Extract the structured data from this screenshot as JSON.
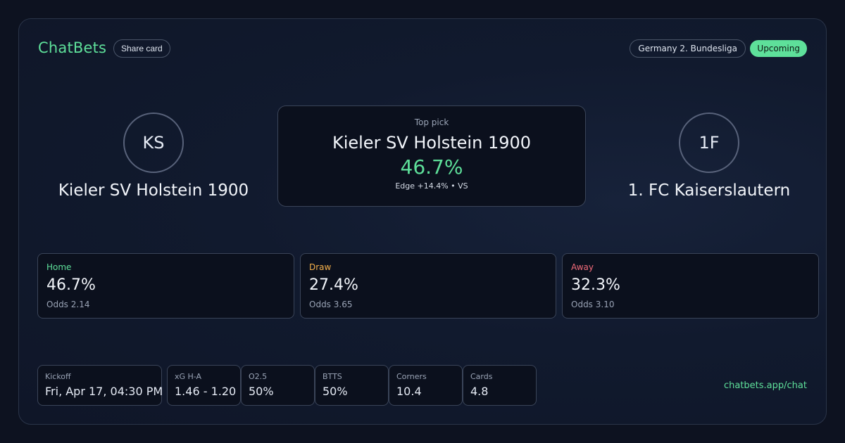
{
  "header": {
    "brand": "ChatBets",
    "share_label": "Share card",
    "league": "Germany 2. Bundesliga",
    "status": "Upcoming"
  },
  "home_team": {
    "initials": "KS",
    "name": "Kieler SV Holstein 1900"
  },
  "away_team": {
    "initials": "1F",
    "name": "1. FC Kaiserslautern"
  },
  "top_pick": {
    "label": "Top pick",
    "team": "Kieler SV Holstein 1900",
    "probability": "46.7%",
    "edge": "Edge +14.4% • VS"
  },
  "outcomes": [
    {
      "label": "Home",
      "probability": "46.7%",
      "odds": "Odds 2.14",
      "color": "#5ee09a"
    },
    {
      "label": "Draw",
      "probability": "27.4%",
      "odds": "Odds 3.65",
      "color": "#f5b04a"
    },
    {
      "label": "Away",
      "probability": "32.3%",
      "odds": "Odds 3.10",
      "color": "#f26b7a"
    }
  ],
  "stats": [
    {
      "label": "Kickoff",
      "value": "Fri, Apr 17, 04:30 PM"
    },
    {
      "label": "xG H-A",
      "value": "1.46 - 1.20"
    },
    {
      "label": "O2.5",
      "value": "50%"
    },
    {
      "label": "BTTS",
      "value": "50%"
    },
    {
      "label": "Corners",
      "value": "10.4"
    },
    {
      "label": "Cards",
      "value": "4.8"
    }
  ],
  "footer": {
    "link": "chatbets.app/chat"
  },
  "colors": {
    "accent": "#5ee09a",
    "background": "#0d1220"
  }
}
